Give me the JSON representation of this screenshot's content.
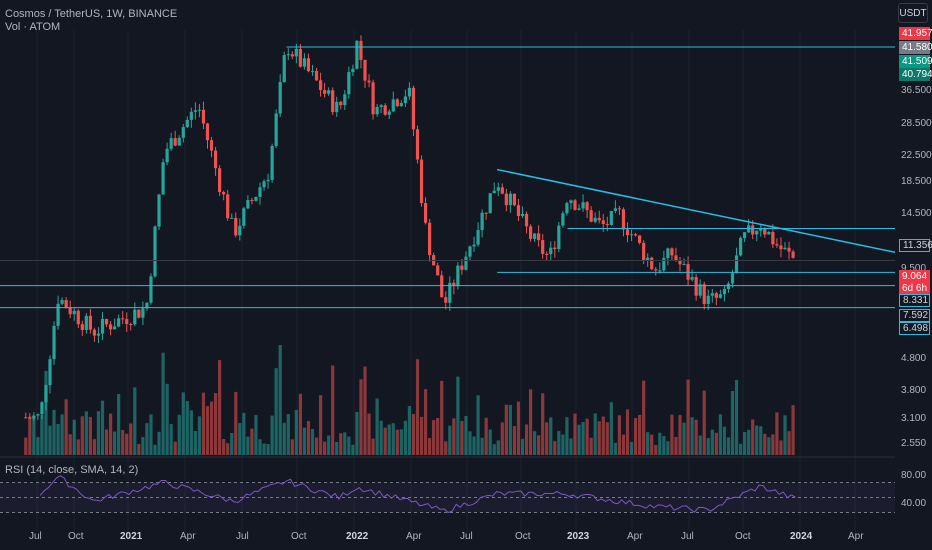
{
  "header": {
    "title": "Cosmos / TetherUS, 1W, BINANCE",
    "volume_label": "Vol · ATOM",
    "currency": "USDT",
    "rsi_label": "RSI (14, close, SMA, 14, 2)"
  },
  "colors": {
    "background": "#131722",
    "up": "#26a69a",
    "down": "#ef5350",
    "up_volume": "#26a69a",
    "down_volume": "#ef5350",
    "trendline": "#22c0e6",
    "rsi": "#7e57c2",
    "red_tag": "#f23645",
    "grey_tag": "#787b86",
    "teal_tag": "#089981"
  },
  "price_tags": [
    {
      "label": "41.957",
      "kind": "red"
    },
    {
      "label": "41.580",
      "kind": "grey"
    },
    {
      "label": "41.509",
      "kind": "teal"
    },
    {
      "label": "40.794",
      "kind": "teal-dark"
    },
    {
      "label": "11.356",
      "kind": "outline"
    },
    {
      "label": "9.064",
      "kind": "red"
    },
    {
      "label": "6d 6h",
      "kind": "red"
    },
    {
      "label": "8.331",
      "kind": "outline"
    },
    {
      "label": "7.592",
      "kind": "outline"
    },
    {
      "label": "6.498",
      "kind": "outline"
    }
  ],
  "chart_data": {
    "type": "candlestick",
    "symbol": "ATOM/USDT",
    "interval": "1W",
    "x_labels": [
      "Jul",
      "Oct",
      "2021",
      "Apr",
      "Jul",
      "Oct",
      "2022",
      "Apr",
      "Jul",
      "Oct",
      "2023",
      "Apr",
      "Jul",
      "Oct",
      "2024",
      "Apr"
    ],
    "y_tick_labels": [
      "36.500",
      "28.500",
      "22.500",
      "18.500",
      "14.500",
      "9.500",
      "4.800",
      "3.800",
      "3.100",
      "2.550"
    ],
    "y_scale": "log",
    "price_anchors": [
      {
        "date": "2020-07",
        "price": 3.0
      },
      {
        "date": "2020-08",
        "price": 7.0
      },
      {
        "date": "2020-10",
        "price": 5.5
      },
      {
        "date": "2021-01",
        "price": 6.5
      },
      {
        "date": "2021-02",
        "price": 19.5
      },
      {
        "date": "2021-04",
        "price": 27.0
      },
      {
        "date": "2021-06",
        "price": 11.0
      },
      {
        "date": "2021-08",
        "price": 17.0
      },
      {
        "date": "2021-09",
        "price": 41.5
      },
      {
        "date": "2021-12",
        "price": 26.0
      },
      {
        "date": "2022-01",
        "price": 41.9
      },
      {
        "date": "2022-02",
        "price": 26.0
      },
      {
        "date": "2022-04",
        "price": 30.0
      },
      {
        "date": "2022-05",
        "price": 11.0
      },
      {
        "date": "2022-06",
        "price": 6.6
      },
      {
        "date": "2022-09",
        "price": 16.0
      },
      {
        "date": "2022-11",
        "price": 10.5
      },
      {
        "date": "2022-12",
        "price": 9.2
      },
      {
        "date": "2023-01",
        "price": 14.5
      },
      {
        "date": "2023-03",
        "price": 11.5
      },
      {
        "date": "2023-04",
        "price": 12.5
      },
      {
        "date": "2023-06",
        "price": 8.5
      },
      {
        "date": "2023-07",
        "price": 9.5
      },
      {
        "date": "2023-09",
        "price": 6.8
      },
      {
        "date": "2023-10",
        "price": 7.0
      },
      {
        "date": "2023-11",
        "price": 10.5
      },
      {
        "date": "2023-12",
        "price": 11.8
      },
      {
        "date": "2024-01",
        "price": 10.0
      },
      {
        "date": "2024-02",
        "price": 9.06
      }
    ],
    "last_price": 9.064,
    "horizontal_levels": [
      40.794,
      11.356,
      9.064,
      8.331,
      7.592
    ],
    "trendline": {
      "from": {
        "date": "2022-09",
        "price": 17.2
      },
      "to": {
        "date": "2024-02",
        "price": 9.6
      }
    },
    "rsi": {
      "y_tick_labels": [
        "80.00",
        "40.00"
      ],
      "upper_band": 70,
      "lower_band": 30,
      "anchors": [
        {
          "date": "2020-07",
          "value": 55
        },
        {
          "date": "2020-08",
          "value": 78
        },
        {
          "date": "2020-10",
          "value": 45
        },
        {
          "date": "2021-02",
          "value": 70
        },
        {
          "date": "2021-06",
          "value": 45
        },
        {
          "date": "2021-09",
          "value": 72
        },
        {
          "date": "2021-12",
          "value": 50
        },
        {
          "date": "2022-01",
          "value": 64
        },
        {
          "date": "2022-06",
          "value": 32
        },
        {
          "date": "2022-09",
          "value": 55
        },
        {
          "date": "2023-01",
          "value": 55
        },
        {
          "date": "2023-06",
          "value": 38
        },
        {
          "date": "2023-09",
          "value": 33
        },
        {
          "date": "2023-12",
          "value": 65
        },
        {
          "date": "2024-02",
          "value": 48
        }
      ]
    }
  }
}
